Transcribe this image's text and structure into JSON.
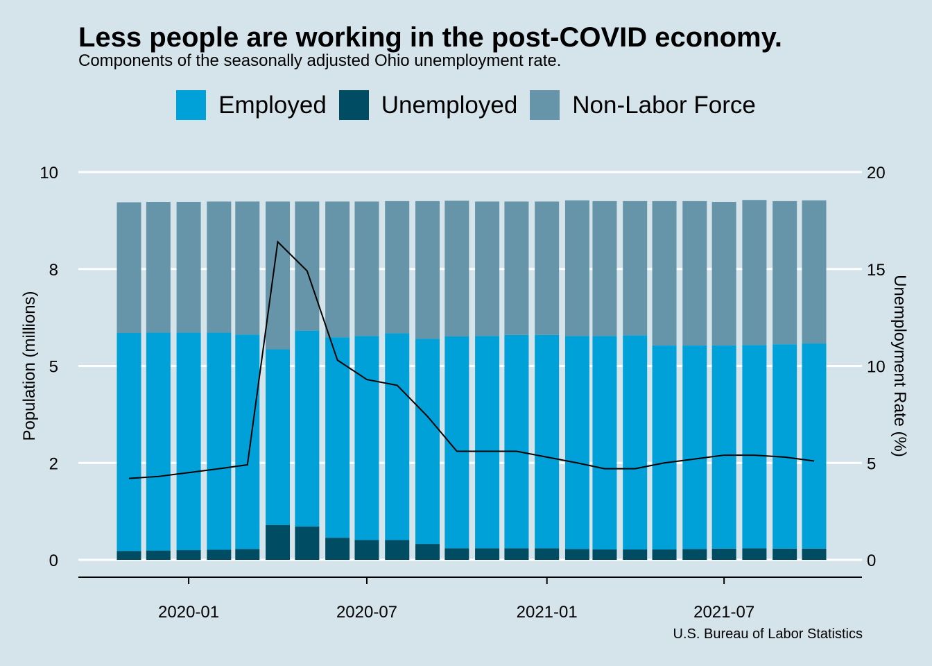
{
  "header": {
    "title": "Less people are working in the post-COVID economy.",
    "subtitle": "Components of the seasonally adjusted Ohio unemployment rate."
  },
  "legend": [
    {
      "label": "Employed",
      "color": "#00a0d8"
    },
    {
      "label": "Unemployed",
      "color": "#004c63"
    },
    {
      "label": "Non-Labor Force",
      "color": "#6694a8"
    }
  ],
  "caption": "U.S. Bureau of Labor Statistics",
  "chart_data": {
    "type": "bar",
    "stacked": true,
    "dual_axis": true,
    "title": "Less people are working in the post-COVID economy.",
    "subtitle": "Components of the seasonally adjusted Ohio unemployment rate.",
    "ylabel": "Population (millions)",
    "y2label": "Unemployment Rate (%)",
    "ylim": [
      0,
      10
    ],
    "y2lim": [
      0,
      20
    ],
    "yticks": [
      0,
      2.5,
      5,
      7.5,
      10
    ],
    "ytick_labels": [
      "0",
      "2",
      "5",
      "8",
      "10"
    ],
    "y2ticks": [
      0,
      5,
      10,
      15,
      20
    ],
    "y2tick_labels": [
      "0",
      "5",
      "10",
      "15",
      "20"
    ],
    "xticks": [
      "2020-01",
      "2020-07",
      "2021-01",
      "2021-07"
    ],
    "grid": true,
    "legend_position": "top",
    "x": [
      "2019-11",
      "2019-12",
      "2020-01",
      "2020-02",
      "2020-03",
      "2020-04",
      "2020-05",
      "2020-06",
      "2020-07",
      "2020-08",
      "2020-09",
      "2020-10",
      "2020-11",
      "2020-12",
      "2021-01",
      "2021-02",
      "2021-03",
      "2021-04",
      "2021-05",
      "2021-06",
      "2021-07",
      "2021-08",
      "2021-09",
      "2021-10"
    ],
    "series": [
      {
        "name": "Unemployed",
        "color": "#004c63",
        "values": [
          0.23,
          0.24,
          0.25,
          0.26,
          0.28,
          0.9,
          0.86,
          0.57,
          0.51,
          0.51,
          0.41,
          0.3,
          0.3,
          0.3,
          0.3,
          0.28,
          0.27,
          0.27,
          0.27,
          0.28,
          0.29,
          0.3,
          0.29,
          0.29
        ]
      },
      {
        "name": "Employed",
        "color": "#00a0d8",
        "values": [
          5.62,
          5.62,
          5.61,
          5.6,
          5.53,
          4.53,
          5.05,
          5.17,
          5.26,
          5.33,
          5.29,
          5.46,
          5.47,
          5.5,
          5.5,
          5.49,
          5.5,
          5.52,
          5.26,
          5.25,
          5.24,
          5.24,
          5.27,
          5.29
        ]
      },
      {
        "name": "Non-Labor Force",
        "color": "#6694a8",
        "values": [
          3.37,
          3.37,
          3.37,
          3.38,
          3.43,
          3.81,
          3.33,
          3.5,
          3.47,
          3.41,
          3.55,
          3.5,
          3.47,
          3.44,
          3.44,
          3.5,
          3.48,
          3.46,
          3.72,
          3.72,
          3.7,
          3.74,
          3.69,
          3.69
        ]
      }
    ],
    "line": {
      "name": "Unemployment Rate (%)",
      "axis": "right",
      "color": "#000000",
      "values": [
        4.2,
        4.3,
        4.5,
        4.7,
        4.9,
        16.4,
        14.9,
        10.3,
        9.3,
        9.0,
        7.4,
        5.6,
        5.6,
        5.6,
        5.3,
        5.0,
        4.7,
        4.7,
        5.0,
        5.2,
        5.4,
        5.4,
        5.3,
        5.1
      ]
    }
  }
}
